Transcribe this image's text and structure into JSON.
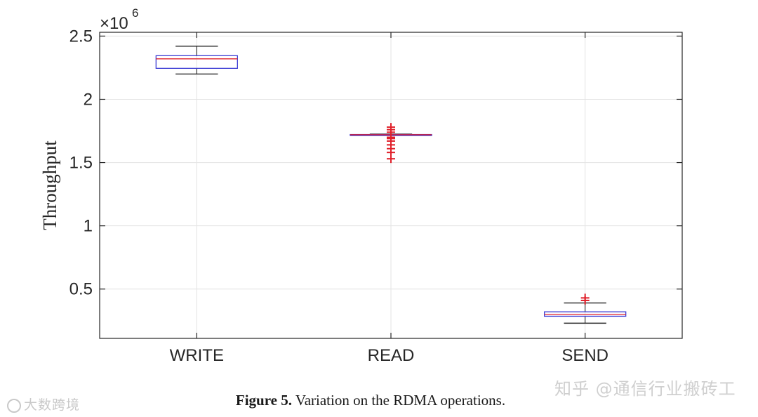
{
  "chart_data": {
    "type": "box",
    "categories": [
      "WRITE",
      "READ",
      "SEND"
    ],
    "ylabel": "Throughput",
    "xlabel": "",
    "y_scale_label": "×10^6",
    "y_multiplier": 1000000,
    "ylim": [
      0.11,
      2.53
    ],
    "yticks": [
      0.5,
      1,
      1.5,
      2,
      2.5
    ],
    "ytick_labels": [
      "0.5",
      "1",
      "1.5",
      "2",
      "2.5"
    ],
    "grid": true,
    "box_color": "#3b3bd4",
    "median_color": "#e0202a",
    "outlier_color": "#e0202a",
    "boxes": [
      {
        "label": "WRITE",
        "whisker_low": 2.2,
        "q1": 2.245,
        "median": 2.32,
        "q3": 2.345,
        "whisker_high": 2.42,
        "outliers": []
      },
      {
        "label": "READ",
        "whisker_low": 1.715,
        "q1": 1.715,
        "median": 1.72,
        "q3": 1.722,
        "whisker_high": 1.725,
        "outliers": [
          1.78,
          1.76,
          1.74,
          1.7,
          1.69,
          1.67,
          1.64,
          1.61,
          1.58,
          1.53
        ]
      },
      {
        "label": "SEND",
        "whisker_low": 0.23,
        "q1": 0.285,
        "median": 0.3,
        "q3": 0.32,
        "whisker_high": 0.39,
        "outliers": [
          0.41,
          0.43
        ]
      }
    ]
  },
  "caption": {
    "label": "Figure 5.",
    "text": " Variation on the RDMA operations."
  },
  "watermarks": {
    "left": "大数跨境",
    "right": "知乎 @通信行业搬砖工"
  }
}
